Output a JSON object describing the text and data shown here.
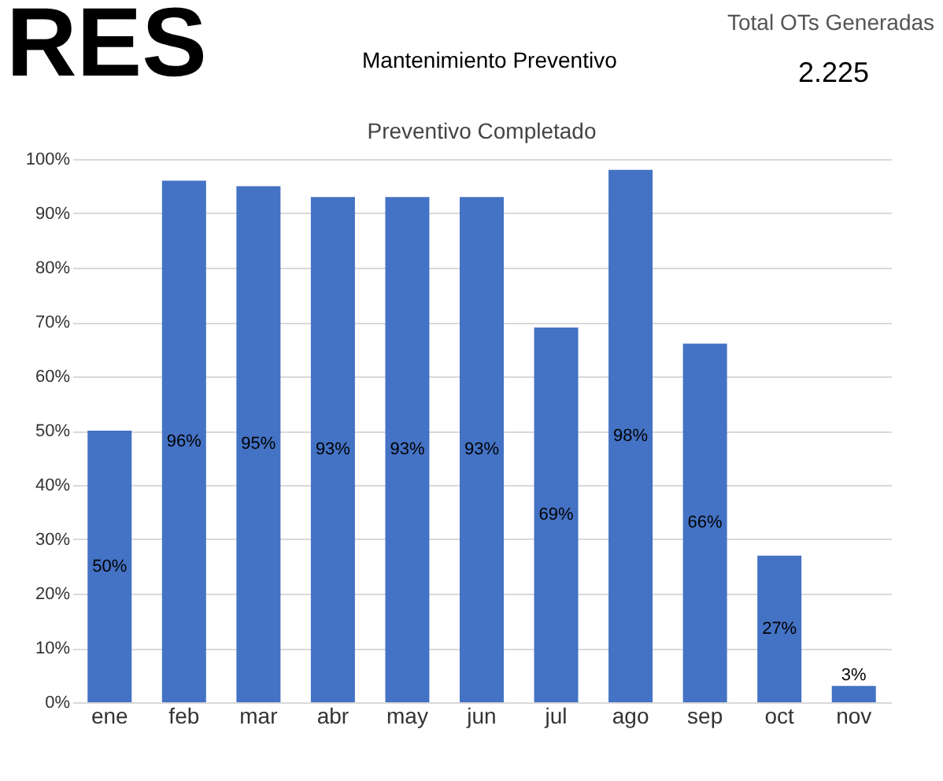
{
  "chart_data": {
    "type": "bar",
    "title": "Preventivo Completado",
    "annotations": [
      "RES",
      "Mantenimiento Preventivo",
      "Total OTs Generadas",
      "2.225"
    ],
    "categories": [
      "ene",
      "feb",
      "mar",
      "abr",
      "may",
      "jun",
      "jul",
      "ago",
      "sep",
      "oct",
      "nov"
    ],
    "values": [
      50,
      96,
      95,
      93,
      93,
      93,
      69,
      98,
      66,
      27,
      3
    ],
    "value_labels": [
      "50%",
      "96%",
      "95%",
      "93%",
      "93%",
      "93%",
      "69%",
      "98%",
      "66%",
      "27%",
      "3%"
    ],
    "color": "#4472c4",
    "ylim": [
      0,
      100
    ],
    "yticks": [
      {
        "value": 0,
        "label": "0%"
      },
      {
        "value": 10,
        "label": "10%"
      },
      {
        "value": 20,
        "label": "20%"
      },
      {
        "value": 30,
        "label": "30%"
      },
      {
        "value": 40,
        "label": "40%"
      },
      {
        "value": 50,
        "label": "50%"
      },
      {
        "value": 60,
        "label": "60%"
      },
      {
        "value": 70,
        "label": "70%"
      },
      {
        "value": 80,
        "label": "80%"
      },
      {
        "value": 90,
        "label": "90%"
      },
      {
        "value": 100,
        "label": "100%"
      }
    ],
    "grid": "y"
  }
}
